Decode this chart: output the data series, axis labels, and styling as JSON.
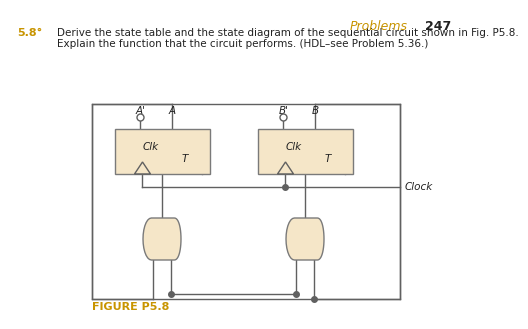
{
  "title": "Problems",
  "title_num": "247",
  "problem_num": "5.8°",
  "problem_text": "Derive the state table and the state diagram of the sequential circuit shown in Fig. P5.8.",
  "problem_text2": "Explain the function that the circuit performs. (HDL–see Problem 5.36.)",
  "figure_label": "FIGURE P5.8",
  "ff_box_color": "#f5e6c8",
  "ff_border_color": "#7a7a7a",
  "wire_color": "#606060",
  "gate_fill": "#f5e6c8",
  "gate_border": "#7a7a7a",
  "bg_color": "#ffffff",
  "title_color": "#c89400",
  "problem_num_color": "#c89400",
  "figure_label_color": "#c89400",
  "body_color": "#222222"
}
